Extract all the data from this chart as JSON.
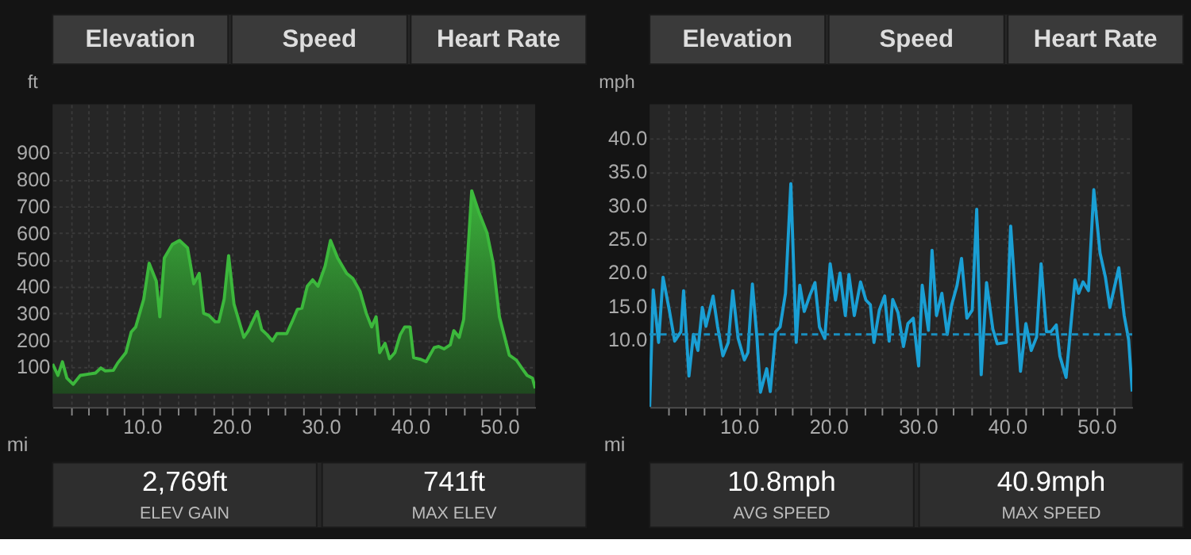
{
  "chart_data": [
    {
      "type": "area",
      "ylabel": "ft",
      "xlabel": "mi",
      "xlim": [
        0,
        54
      ],
      "ylim": [
        -50,
        1080
      ],
      "yticks": [
        100,
        200,
        300,
        400,
        500,
        600,
        700,
        800,
        900
      ],
      "xticks": [
        {
          "value": 2,
          "label": null
        },
        {
          "value": 4,
          "label": null
        },
        {
          "value": 6,
          "label": null
        },
        {
          "value": 8,
          "label": null
        },
        {
          "value": 10,
          "label": "10.0"
        },
        {
          "value": 12,
          "label": null
        },
        {
          "value": 14,
          "label": null
        },
        {
          "value": 16,
          "label": null
        },
        {
          "value": 18,
          "label": null
        },
        {
          "value": 20,
          "label": "20.0"
        },
        {
          "value": 22,
          "label": null
        },
        {
          "value": 24,
          "label": null
        },
        {
          "value": 26,
          "label": null
        },
        {
          "value": 28,
          "label": null
        },
        {
          "value": 30,
          "label": "30.0"
        },
        {
          "value": 32,
          "label": null
        },
        {
          "value": 34,
          "label": null
        },
        {
          "value": 36,
          "label": null
        },
        {
          "value": 38,
          "label": null
        },
        {
          "value": 40,
          "label": "40.0"
        },
        {
          "value": 42,
          "label": null
        },
        {
          "value": 44,
          "label": null
        },
        {
          "value": 46,
          "label": null
        },
        {
          "value": 48,
          "label": null
        },
        {
          "value": 50,
          "label": "50.0"
        },
        {
          "value": 52,
          "label": null
        }
      ],
      "grid": true,
      "legend": false,
      "marker": "none",
      "line_style": "solid",
      "annotations": [
        "Elevation",
        "Speed",
        "Heart Rate",
        "2,769ft",
        "ELEV GAIN",
        "741ft",
        "MAX ELEV"
      ],
      "series": [
        {
          "color": "#3cb83c",
          "x": [
            0,
            0.6,
            1.1,
            1.6,
            2.3,
            3.1,
            4.0,
            4.8,
            5.4,
            5.9,
            6.8,
            7.3,
            8.2,
            8.8,
            9.3,
            10.2,
            10.8,
            11.6,
            12.0,
            12.5,
            13.4,
            14.2,
            15.1,
            15.8,
            16.4,
            16.9,
            17.5,
            18.2,
            18.6,
            19.2,
            19.7,
            20.3,
            21.4,
            21.9,
            22.9,
            23.4,
            24.0,
            24.6,
            25.1,
            26.2,
            26.8,
            27.4,
            27.9,
            28.5,
            29.1,
            29.7,
            30.5,
            31.1,
            31.9,
            32.9,
            33.6,
            34.4,
            35.1,
            35.7,
            36.2,
            36.6,
            37.2,
            37.7,
            38.3,
            38.9,
            39.4,
            40.0,
            40.4,
            41.2,
            41.8,
            42.7,
            43.2,
            43.8,
            44.5,
            44.9,
            45.5,
            46.0,
            46.9,
            47.7,
            48.6,
            49.3,
            50.0,
            51.1,
            51.9,
            52.5,
            53.1,
            53.7,
            54.0
          ],
          "values": [
            111,
            68,
            119,
            58,
            35,
            68,
            73,
            77,
            96,
            85,
            87,
            115,
            153,
            230,
            249,
            353,
            487,
            420,
            287,
            506,
            557,
            572,
            544,
            410,
            449,
            300,
            292,
            268,
            268,
            353,
            515,
            334,
            210,
            235,
            306,
            239,
            220,
            197,
            224,
            224,
            268,
            315,
            319,
            401,
            425,
            401,
            477,
            572,
            506,
            449,
            430,
            382,
            300,
            249,
            287,
            153,
            188,
            130,
            153,
            220,
            249,
            249,
            134,
            128,
            119,
            172,
            176,
            167,
            182,
            235,
            210,
            277,
            757,
            677,
            601,
            487,
            287,
            144,
            125,
            96,
            68,
            58,
            20
          ]
        }
      ]
    },
    {
      "type": "line",
      "ylabel": "mph",
      "xlabel": "mi",
      "xlim": [
        0,
        54
      ],
      "ylim": [
        0,
        45
      ],
      "yticks": [
        {
          "value": 10,
          "label": "10.0"
        },
        {
          "value": 15,
          "label": "15.0"
        },
        {
          "value": 20,
          "label": "20.0"
        },
        {
          "value": 25,
          "label": "25.0"
        },
        {
          "value": 30,
          "label": "30.0"
        },
        {
          "value": 35,
          "label": "35.0"
        },
        {
          "value": 40,
          "label": "40.0"
        }
      ],
      "xticks": [
        {
          "value": 2,
          "label": null
        },
        {
          "value": 4,
          "label": null
        },
        {
          "value": 6,
          "label": null
        },
        {
          "value": 8,
          "label": null
        },
        {
          "value": 10,
          "label": "10.0"
        },
        {
          "value": 12,
          "label": null
        },
        {
          "value": 14,
          "label": null
        },
        {
          "value": 16,
          "label": null
        },
        {
          "value": 18,
          "label": null
        },
        {
          "value": 20,
          "label": "20.0"
        },
        {
          "value": 22,
          "label": null
        },
        {
          "value": 24,
          "label": null
        },
        {
          "value": 26,
          "label": null
        },
        {
          "value": 28,
          "label": null
        },
        {
          "value": 30,
          "label": "30.0"
        },
        {
          "value": 32,
          "label": null
        },
        {
          "value": 34,
          "label": null
        },
        {
          "value": 36,
          "label": null
        },
        {
          "value": 38,
          "label": null
        },
        {
          "value": 40,
          "label": "40.0"
        },
        {
          "value": 42,
          "label": null
        },
        {
          "value": 44,
          "label": null
        },
        {
          "value": 46,
          "label": null
        },
        {
          "value": 48,
          "label": null
        },
        {
          "value": 50,
          "label": "50.0"
        },
        {
          "value": 52,
          "label": null
        }
      ],
      "grid": true,
      "legend": false,
      "marker": "none",
      "line_style": "solid",
      "ref_lines": [
        {
          "axis": "y",
          "value": 10.8,
          "label": null,
          "color": "#1a8fc0",
          "line_style": "dashed"
        }
      ],
      "annotations": [
        "Elevation",
        "Speed",
        "Heart Rate",
        "10.8mph",
        "AVG SPEED",
        "40.9mph",
        "MAX SPEED"
      ],
      "series": [
        {
          "color": "#1a9fd4",
          "x": [
            0,
            0.4,
            1.0,
            1.5,
            2.2,
            2.8,
            3.5,
            3.8,
            4.4,
            4.9,
            5.4,
            5.9,
            6.3,
            7.1,
            7.6,
            8.2,
            8.8,
            9.3,
            9.9,
            10.6,
            11.0,
            11.5,
            12.0,
            12.4,
            13.1,
            13.5,
            14.1,
            14.6,
            15.2,
            15.8,
            16.4,
            16.8,
            17.3,
            17.9,
            18.5,
            19.0,
            19.6,
            20.2,
            20.8,
            21.3,
            21.9,
            22.3,
            22.9,
            23.6,
            24.2,
            24.7,
            25.1,
            25.7,
            26.3,
            26.8,
            27.2,
            27.8,
            28.4,
            28.9,
            29.5,
            30.1,
            30.5,
            31.2,
            31.6,
            32.1,
            32.7,
            33.3,
            33.8,
            34.4,
            34.9,
            35.5,
            36.1,
            36.6,
            37.1,
            37.7,
            38.4,
            38.9,
            39.9,
            40.4,
            41.0,
            41.5,
            42.1,
            42.7,
            43.3,
            43.8,
            44.4,
            44.9,
            45.5,
            45.9,
            46.6,
            47.6,
            48.0,
            48.5,
            49.1,
            49.7,
            50.4,
            51.0,
            51.5,
            52.5,
            53.1,
            53.6,
            54.0
          ],
          "values": [
            0,
            17.4,
            9.6,
            19.3,
            14.4,
            9.8,
            11.2,
            17.3,
            4.6,
            10.8,
            8.4,
            14.8,
            12.0,
            16.5,
            12.0,
            7.6,
            9.6,
            17.3,
            10.2,
            7.0,
            8.1,
            18.3,
            10.4,
            2.2,
            5.7,
            2.3,
            11.2,
            11.9,
            16.9,
            33.2,
            9.6,
            18.1,
            14.2,
            16.5,
            18.5,
            11.9,
            10.2,
            21.3,
            15.9,
            19.9,
            13.6,
            19.7,
            13.6,
            18.6,
            15.9,
            15.2,
            9.6,
            14.4,
            16.5,
            9.8,
            16.0,
            14.0,
            9.0,
            12.4,
            13.2,
            6.1,
            18.1,
            11.4,
            23.3,
            13.6,
            16.9,
            10.8,
            15.2,
            18.1,
            22.1,
            13.2,
            14.4,
            29.4,
            4.8,
            18.5,
            11.6,
            9.4,
            9.6,
            26.9,
            15.2,
            5.3,
            12.4,
            8.4,
            10.4,
            21.3,
            11.2,
            11.2,
            12.2,
            7.6,
            4.4,
            18.9,
            16.9,
            18.6,
            17.3,
            32.3,
            22.9,
            19.3,
            14.8,
            20.7,
            13.6,
            10.0,
            2.3
          ]
        }
      ]
    }
  ]
}
